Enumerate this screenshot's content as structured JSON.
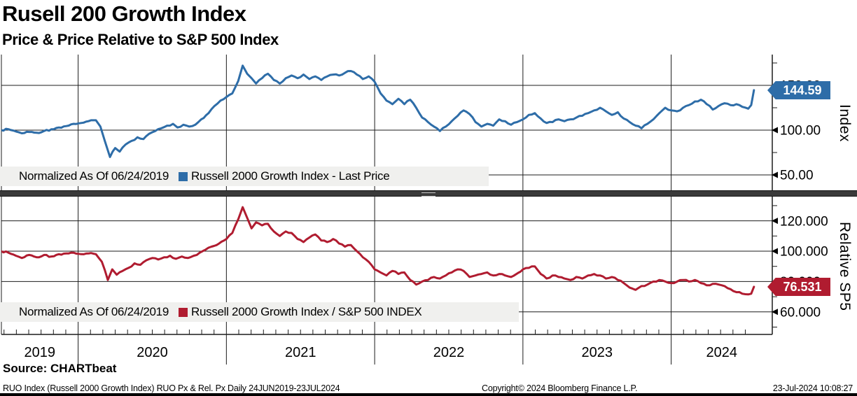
{
  "header": {
    "title": "Rusell 200 Growth Index",
    "subtitle": "Price & Price Relative to S&P 500 Index"
  },
  "panels": [
    {
      "legend": {
        "note": "Normalized As Of 06/24/2019",
        "series": "Russell 2000 Growth Index - Last Price"
      },
      "axis_title": "Index",
      "badge": {
        "value": "144.59",
        "color": "#2e6da8"
      }
    },
    {
      "legend": {
        "note": "Normalized As Of 06/24/2019",
        "series": "Russell 2000 Growth Index / S&P 500 INDEX"
      },
      "axis_title": "Relative SP5",
      "badge": {
        "value": "76.531",
        "color": "#b01c30"
      }
    }
  ],
  "x_axis": {
    "tick_labels": [
      "2019",
      "2020",
      "2021",
      "2022",
      "2023",
      "2024"
    ],
    "gridline_years": [
      2020,
      2021,
      2022,
      2023,
      2024
    ],
    "range": [
      2019.478,
      2024.558
    ]
  },
  "footer": {
    "source": "Source: CHARTbeat",
    "left": "RUO Index (Russell 2000 Growth Index) RUO Px & Rel. Px  Daily 24JUN2019-23JUL2024",
    "center": "Copyright© 2024 Bloomberg Finance L.P.",
    "right": "23-Jul-2024 10:08:27"
  },
  "chart_data": [
    {
      "type": "line",
      "panel": "price",
      "title": "Russell 2000 Growth Index - Last Price",
      "normalized_note": "Normalized As Of 06/24/2019",
      "ylabel": "Index",
      "yticks": [
        50,
        100,
        150
      ],
      "ytick_labels": [
        "50.00",
        "100.00",
        "150.00"
      ],
      "yticks_minor": [
        75,
        125,
        175
      ],
      "ylim": [
        31,
        184
      ],
      "grid": true,
      "color": "#2e6da8",
      "last_value": 144.59,
      "points": [
        [
          2019.48,
          100
        ],
        [
          2019.53,
          101
        ],
        [
          2019.58,
          98.5
        ],
        [
          2019.62,
          96.5
        ],
        [
          2019.67,
          98
        ],
        [
          2019.72,
          97
        ],
        [
          2019.77,
          99
        ],
        [
          2019.82,
          101
        ],
        [
          2019.87,
          103
        ],
        [
          2019.92,
          104.5
        ],
        [
          2019.97,
          107
        ],
        [
          2020.02,
          108
        ],
        [
          2020.07,
          110
        ],
        [
          2020.12,
          111
        ],
        [
          2020.15,
          104
        ],
        [
          2020.18,
          88
        ],
        [
          2020.215,
          70
        ],
        [
          2020.25,
          80
        ],
        [
          2020.28,
          76
        ],
        [
          2020.32,
          84
        ],
        [
          2020.36,
          88
        ],
        [
          2020.4,
          92
        ],
        [
          2020.44,
          90
        ],
        [
          2020.48,
          96
        ],
        [
          2020.52,
          99
        ],
        [
          2020.56,
          102
        ],
        [
          2020.6,
          105
        ],
        [
          2020.64,
          107
        ],
        [
          2020.67,
          103
        ],
        [
          2020.71,
          106
        ],
        [
          2020.75,
          104
        ],
        [
          2020.79,
          106
        ],
        [
          2020.83,
          112
        ],
        [
          2020.88,
          119
        ],
        [
          2020.92,
          127
        ],
        [
          2020.96,
          133
        ],
        [
          2021.0,
          137
        ],
        [
          2021.04,
          141
        ],
        [
          2021.08,
          155
        ],
        [
          2021.11,
          172
        ],
        [
          2021.14,
          163
        ],
        [
          2021.17,
          158
        ],
        [
          2021.2,
          152
        ],
        [
          2021.24,
          158
        ],
        [
          2021.28,
          163
        ],
        [
          2021.32,
          156
        ],
        [
          2021.36,
          152
        ],
        [
          2021.4,
          158
        ],
        [
          2021.44,
          161
        ],
        [
          2021.48,
          158
        ],
        [
          2021.52,
          162
        ],
        [
          2021.56,
          157
        ],
        [
          2021.6,
          160
        ],
        [
          2021.64,
          156
        ],
        [
          2021.68,
          160
        ],
        [
          2021.72,
          162
        ],
        [
          2021.76,
          161
        ],
        [
          2021.8,
          164
        ],
        [
          2021.84,
          166
        ],
        [
          2021.88,
          162
        ],
        [
          2021.92,
          157
        ],
        [
          2021.96,
          160
        ],
        [
          2022.0,
          154
        ],
        [
          2022.04,
          141
        ],
        [
          2022.08,
          133
        ],
        [
          2022.12,
          129
        ],
        [
          2022.16,
          135
        ],
        [
          2022.2,
          129
        ],
        [
          2022.24,
          134
        ],
        [
          2022.28,
          125
        ],
        [
          2022.32,
          114
        ],
        [
          2022.36,
          109
        ],
        [
          2022.4,
          104
        ],
        [
          2022.44,
          99
        ],
        [
          2022.48,
          104
        ],
        [
          2022.52,
          110
        ],
        [
          2022.56,
          116
        ],
        [
          2022.6,
          122
        ],
        [
          2022.64,
          118
        ],
        [
          2022.68,
          109
        ],
        [
          2022.72,
          104
        ],
        [
          2022.76,
          107
        ],
        [
          2022.8,
          105
        ],
        [
          2022.84,
          112
        ],
        [
          2022.88,
          110
        ],
        [
          2022.92,
          106
        ],
        [
          2022.96,
          109
        ],
        [
          2023.0,
          112
        ],
        [
          2023.04,
          117
        ],
        [
          2023.08,
          119
        ],
        [
          2023.12,
          113
        ],
        [
          2023.16,
          108
        ],
        [
          2023.2,
          109
        ],
        [
          2023.24,
          112
        ],
        [
          2023.28,
          110
        ],
        [
          2023.32,
          112
        ],
        [
          2023.36,
          114
        ],
        [
          2023.4,
          116
        ],
        [
          2023.44,
          119
        ],
        [
          2023.48,
          122
        ],
        [
          2023.52,
          125
        ],
        [
          2023.56,
          121
        ],
        [
          2023.6,
          117
        ],
        [
          2023.64,
          120
        ],
        [
          2023.68,
          113
        ],
        [
          2023.72,
          109
        ],
        [
          2023.76,
          105
        ],
        [
          2023.8,
          102
        ],
        [
          2023.84,
          107
        ],
        [
          2023.88,
          112
        ],
        [
          2023.92,
          119
        ],
        [
          2023.96,
          125
        ],
        [
          2024.0,
          122
        ],
        [
          2024.04,
          121
        ],
        [
          2024.08,
          125
        ],
        [
          2024.12,
          128
        ],
        [
          2024.16,
          132
        ],
        [
          2024.2,
          134
        ],
        [
          2024.24,
          129
        ],
        [
          2024.28,
          123
        ],
        [
          2024.32,
          127
        ],
        [
          2024.36,
          130
        ],
        [
          2024.4,
          128
        ],
        [
          2024.44,
          129
        ],
        [
          2024.48,
          126
        ],
        [
          2024.52,
          124
        ],
        [
          2024.54,
          128
        ],
        [
          2024.558,
          144.59
        ]
      ]
    },
    {
      "type": "line",
      "panel": "relative",
      "title": "Russell 2000 Growth Index / S&P 500 INDEX",
      "normalized_note": "Normalized As Of 06/24/2019",
      "ylabel": "Relative SP5",
      "yticks": [
        60,
        80,
        100,
        120
      ],
      "ytick_labels": [
        "60.000",
        "80.000",
        "100.000",
        "120.000"
      ],
      "yticks_minor": [
        50,
        70,
        90,
        110,
        130
      ],
      "ylim": [
        45,
        135
      ],
      "grid": true,
      "color": "#b01c30",
      "last_value": 76.531,
      "points": [
        [
          2019.48,
          100
        ],
        [
          2019.53,
          99
        ],
        [
          2019.58,
          97
        ],
        [
          2019.62,
          95.5
        ],
        [
          2019.67,
          97.5
        ],
        [
          2019.72,
          96
        ],
        [
          2019.77,
          97.5
        ],
        [
          2019.82,
          96.5
        ],
        [
          2019.87,
          98
        ],
        [
          2019.92,
          98.5
        ],
        [
          2019.97,
          99
        ],
        [
          2020.02,
          98
        ],
        [
          2020.07,
          98.5
        ],
        [
          2020.12,
          98
        ],
        [
          2020.16,
          93
        ],
        [
          2020.2,
          81
        ],
        [
          2020.23,
          88
        ],
        [
          2020.26,
          84.5
        ],
        [
          2020.3,
          87
        ],
        [
          2020.34,
          89
        ],
        [
          2020.38,
          92
        ],
        [
          2020.42,
          91
        ],
        [
          2020.46,
          94
        ],
        [
          2020.5,
          95.5
        ],
        [
          2020.54,
          94.5
        ],
        [
          2020.58,
          96
        ],
        [
          2020.62,
          97
        ],
        [
          2020.66,
          95
        ],
        [
          2020.7,
          96.5
        ],
        [
          2020.74,
          95.5
        ],
        [
          2020.78,
          97
        ],
        [
          2020.82,
          99
        ],
        [
          2020.86,
          101
        ],
        [
          2020.9,
          103
        ],
        [
          2020.95,
          105
        ],
        [
          2021.0,
          108
        ],
        [
          2021.04,
          112
        ],
        [
          2021.08,
          121
        ],
        [
          2021.11,
          129
        ],
        [
          2021.14,
          122
        ],
        [
          2021.17,
          115
        ],
        [
          2021.2,
          119
        ],
        [
          2021.24,
          117
        ],
        [
          2021.28,
          118
        ],
        [
          2021.32,
          113
        ],
        [
          2021.36,
          110
        ],
        [
          2021.4,
          113
        ],
        [
          2021.44,
          112
        ],
        [
          2021.48,
          108
        ],
        [
          2021.52,
          106
        ],
        [
          2021.56,
          109
        ],
        [
          2021.6,
          111
        ],
        [
          2021.64,
          107
        ],
        [
          2021.68,
          106
        ],
        [
          2021.72,
          108
        ],
        [
          2021.76,
          105
        ],
        [
          2021.8,
          103
        ],
        [
          2021.84,
          104
        ],
        [
          2021.88,
          100
        ],
        [
          2021.92,
          96
        ],
        [
          2021.96,
          93
        ],
        [
          2022.0,
          88
        ],
        [
          2022.04,
          86
        ],
        [
          2022.08,
          84
        ],
        [
          2022.12,
          87
        ],
        [
          2022.16,
          85
        ],
        [
          2022.2,
          86
        ],
        [
          2022.24,
          81
        ],
        [
          2022.28,
          78
        ],
        [
          2022.32,
          80
        ],
        [
          2022.36,
          81
        ],
        [
          2022.4,
          83
        ],
        [
          2022.44,
          82
        ],
        [
          2022.48,
          84
        ],
        [
          2022.52,
          86
        ],
        [
          2022.56,
          88
        ],
        [
          2022.6,
          87
        ],
        [
          2022.64,
          83
        ],
        [
          2022.68,
          84
        ],
        [
          2022.72,
          85
        ],
        [
          2022.76,
          86
        ],
        [
          2022.8,
          84
        ],
        [
          2022.84,
          85
        ],
        [
          2022.88,
          84
        ],
        [
          2022.92,
          83
        ],
        [
          2023.0,
          88
        ],
        [
          2023.04,
          89
        ],
        [
          2023.08,
          90
        ],
        [
          2023.12,
          85
        ],
        [
          2023.16,
          82
        ],
        [
          2023.2,
          84
        ],
        [
          2023.24,
          83
        ],
        [
          2023.28,
          82
        ],
        [
          2023.32,
          81
        ],
        [
          2023.36,
          83
        ],
        [
          2023.4,
          82
        ],
        [
          2023.44,
          84
        ],
        [
          2023.48,
          85
        ],
        [
          2023.52,
          84
        ],
        [
          2023.56,
          82
        ],
        [
          2023.6,
          83
        ],
        [
          2023.64,
          81
        ],
        [
          2023.68,
          79
        ],
        [
          2023.72,
          76
        ],
        [
          2023.76,
          74.5
        ],
        [
          2023.8,
          77
        ],
        [
          2023.84,
          78
        ],
        [
          2023.88,
          80
        ],
        [
          2023.92,
          81
        ],
        [
          2023.96,
          80
        ],
        [
          2024.0,
          79
        ],
        [
          2024.04,
          80
        ],
        [
          2024.08,
          81
        ],
        [
          2024.12,
          80
        ],
        [
          2024.16,
          81
        ],
        [
          2024.2,
          79
        ],
        [
          2024.24,
          77.5
        ],
        [
          2024.28,
          78.5
        ],
        [
          2024.32,
          78
        ],
        [
          2024.36,
          77
        ],
        [
          2024.4,
          75
        ],
        [
          2024.44,
          73
        ],
        [
          2024.48,
          72
        ],
        [
          2024.52,
          71.5
        ],
        [
          2024.54,
          72
        ],
        [
          2024.558,
          76.531
        ]
      ]
    }
  ]
}
